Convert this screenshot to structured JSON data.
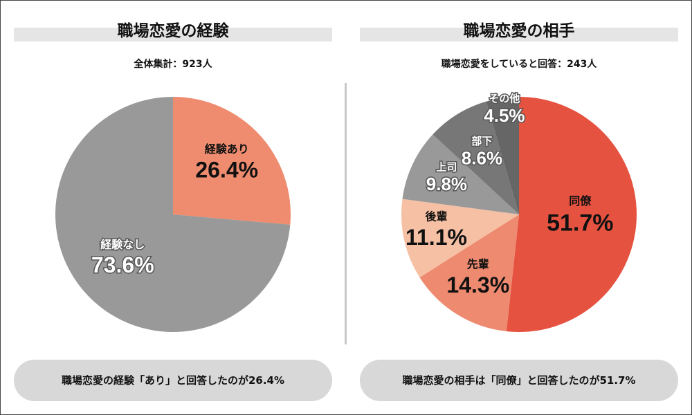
{
  "chart_data": [
    {
      "type": "pie",
      "title": "職場恋愛の経験",
      "subtitle": "全体集計：923人",
      "slices": [
        {
          "label": "経験あり",
          "value": 26.4,
          "value_label": "26.4%",
          "color": "#ef8c6f",
          "text_color": "#111111"
        },
        {
          "label": "経験なし",
          "value": 73.6,
          "value_label": "73.6%",
          "color": "#999999",
          "text_color": "#ffffff"
        }
      ],
      "summary": "職場恋愛の経験「あり」と回答したのが26.4%"
    },
    {
      "type": "pie",
      "title": "職場恋愛の相手",
      "subtitle": "職場恋愛をしていると回答：243人",
      "slices": [
        {
          "label": "同僚",
          "value": 51.7,
          "value_label": "51.7%",
          "color": "#e55240",
          "text_color": "#111111"
        },
        {
          "label": "先輩",
          "value": 14.3,
          "value_label": "14.3%",
          "color": "#ee8a70",
          "text_color": "#111111"
        },
        {
          "label": "後輩",
          "value": 11.1,
          "value_label": "11.1%",
          "color": "#f5c0a3",
          "text_color": "#111111"
        },
        {
          "label": "上司",
          "value": 9.8,
          "value_label": "9.8%",
          "color": "#999999",
          "text_color": "#ffffff"
        },
        {
          "label": "部下",
          "value": 8.6,
          "value_label": "8.6%",
          "color": "#777777",
          "text_color": "#ffffff"
        },
        {
          "label": "その他",
          "value": 4.5,
          "value_label": "4.5%",
          "color": "#666666",
          "text_color": "#ffffff"
        }
      ],
      "summary": "職場恋愛の相手は「同僚」と回答したのが51.7%"
    }
  ]
}
